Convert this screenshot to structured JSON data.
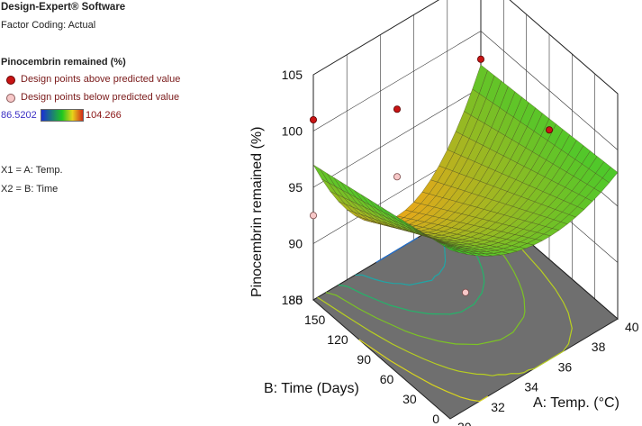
{
  "app": {
    "title": "Design-Expert® Software",
    "factor_coding": "Factor Coding: Actual"
  },
  "legend": {
    "response": "Pinocembrin remained (%)",
    "above_label": "Design points above predicted value",
    "below_label": "Design points below predicted value",
    "color_min": "86.5202",
    "color_max": "104.266",
    "x1_map": "X1 = A: Temp.",
    "x2_map": "X2 = B: Time"
  },
  "colors": {
    "above": "#c81414",
    "below": "#f7c8c8",
    "floor": "#6f6f6f",
    "surface_low": "#e8a81a",
    "surface_mid": "#c8d81a",
    "surface_high": "#2bb12b"
  },
  "chart_data": {
    "type": "surface3d",
    "xlabel": "A: Temp. (°C)",
    "ylabel": "B: Time (Days)",
    "zlabel": "Pinocembrin remained (%)",
    "x_ticks": [
      "30",
      "32",
      "34",
      "36",
      "38",
      "40"
    ],
    "y_ticks": [
      "0",
      "30",
      "60",
      "90",
      "120",
      "150",
      "180"
    ],
    "z_ticks": [
      "85",
      "90",
      "95",
      "100",
      "105"
    ],
    "xlim": [
      30,
      40
    ],
    "ylim": [
      0,
      180
    ],
    "zlim": [
      85,
      105
    ],
    "surface_corners": [
      {
        "temp": 30,
        "time": 0,
        "value": 100
      },
      {
        "temp": 40,
        "time": 0,
        "value": 98
      },
      {
        "temp": 30,
        "time": 180,
        "value": 97
      },
      {
        "temp": 40,
        "time": 180,
        "value": 97
      }
    ],
    "surface_minimum": {
      "temp": 35,
      "time": 150,
      "value": 88.5
    },
    "design_points_above": [
      {
        "temp": 30,
        "time": 180,
        "value": 101
      },
      {
        "temp": 35,
        "time": 180,
        "value": 97.5
      },
      {
        "temp": 40,
        "time": 180,
        "value": 97.5
      },
      {
        "temp": 40,
        "time": 90,
        "value": 96.5
      }
    ],
    "design_points_below": [
      {
        "temp": 30,
        "time": 180,
        "value": 92.5
      },
      {
        "temp": 35,
        "time": 180,
        "value": 91.5
      },
      {
        "temp": 35,
        "time": 90,
        "value": 86.5
      }
    ],
    "contour_levels": [
      88,
      90,
      92,
      94,
      96,
      98,
      100
    ],
    "grid": true
  }
}
